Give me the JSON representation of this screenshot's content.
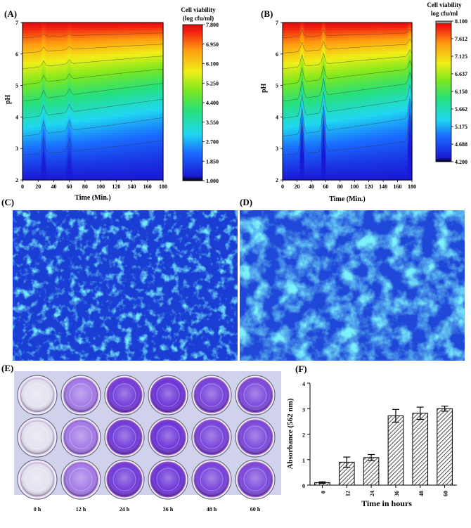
{
  "panels": {
    "a": "(A)",
    "b": "(B)",
    "c": "(C)",
    "d": "(D)",
    "e": "(E)",
    "f": "(F)"
  },
  "chart_data": [
    {
      "id": "A",
      "type": "heatmap",
      "title": "(A)",
      "xlabel": "Time (Min.)",
      "ylabel": "pH",
      "xlim": [
        0,
        180
      ],
      "ylim": [
        2,
        7
      ],
      "xticks": [
        0,
        20,
        40,
        60,
        80,
        100,
        120,
        140,
        160,
        180
      ],
      "yticks": [
        2,
        3,
        4,
        5,
        6,
        7
      ],
      "colorbar_title": [
        "Cell viability",
        "(log cfu/ml)"
      ],
      "colorbar_ticks": [
        "7.800",
        "6.950",
        "6.100",
        "5.250",
        "4.400",
        "3.550",
        "2.700",
        "1.850",
        "1.000"
      ],
      "zlim": [
        1.0,
        7.8
      ],
      "dips": [
        {
          "t": 27,
          "depth": 0.45
        },
        {
          "t": 60,
          "depth": 0.35
        }
      ]
    },
    {
      "id": "B",
      "type": "heatmap",
      "title": "(B)",
      "xlabel": "Time (Min.)",
      "ylabel": "pH",
      "xlim": [
        0,
        180
      ],
      "ylim": [
        2,
        7
      ],
      "xticks": [
        0,
        20,
        40,
        60,
        80,
        100,
        120,
        140,
        160,
        180
      ],
      "yticks": [
        2,
        3,
        4,
        5,
        6,
        7
      ],
      "colorbar_title": [
        "Cell viability",
        "log cfu/ml"
      ],
      "colorbar_ticks": [
        "8.100",
        "7.612",
        "7.125",
        "6.637",
        "6.150",
        "5.662",
        "5.175",
        "4.688",
        "4.200"
      ],
      "zlim": [
        4.2,
        8.1
      ],
      "dips": [
        {
          "t": 27,
          "depth": 1.0
        },
        {
          "t": 57,
          "depth": 1.0
        },
        {
          "t": 177,
          "depth": 0.8
        }
      ]
    },
    {
      "id": "F",
      "type": "bar",
      "title": "(F)",
      "categories": [
        "0",
        "12",
        "24",
        "36",
        "48",
        "60"
      ],
      "values": [
        0.1,
        0.9,
        1.08,
        2.72,
        2.82,
        3.0
      ],
      "errors": [
        0.03,
        0.2,
        0.12,
        0.25,
        0.24,
        0.1
      ],
      "xlabel": "Time in hours",
      "ylabel": "Absorbance (562 nm)",
      "ylim": [
        0,
        4
      ],
      "yticks": [
        0,
        1,
        2,
        3,
        4
      ]
    }
  ],
  "well_plate": {
    "column_labels": [
      "0 h",
      "12 h",
      "24 h",
      "36 h",
      "48 h",
      "60 h"
    ],
    "stain_intensity": [
      0.05,
      0.35,
      0.8,
      0.85,
      0.75,
      0.7
    ]
  }
}
